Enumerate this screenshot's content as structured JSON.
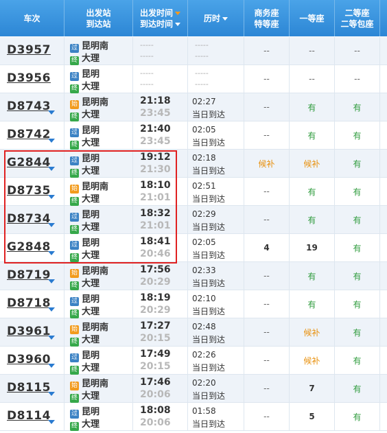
{
  "header": {
    "train_no": "车次",
    "dep_station": "出发站",
    "arr_station": "到达站",
    "dep_time": "出发时间",
    "arr_time": "到达时间",
    "duration": "历时",
    "business": "商务座",
    "premium": "特等座",
    "first": "一等座",
    "second": "二等座",
    "second_box": "二等包座"
  },
  "badges": {
    "guo": "过",
    "shi": "始",
    "zhong": "终"
  },
  "rows": [
    {
      "train": "D3957",
      "arrow": false,
      "from_badge": "过",
      "from": "昆明南",
      "to_badge": "终",
      "to": "大理",
      "dep": "-----",
      "arr": "-----",
      "dur": "-----",
      "dur2": "-----",
      "empty_times": true,
      "business": "--",
      "first": "--",
      "second": "--"
    },
    {
      "train": "D3956",
      "arrow": false,
      "from_badge": "过",
      "from": "昆明",
      "to_badge": "终",
      "to": "大理",
      "dep": "-----",
      "arr": "-----",
      "dur": "-----",
      "dur2": "-----",
      "empty_times": true,
      "business": "--",
      "first": "--",
      "second": "--"
    },
    {
      "train": "D8743",
      "arrow": true,
      "from_badge": "始",
      "from": "昆明南",
      "to_badge": "终",
      "to": "大理",
      "dep": "21:18",
      "arr": "23:45",
      "dur": "02:27",
      "dur2": "当日到达",
      "business": "--",
      "first": "有",
      "second": "有"
    },
    {
      "train": "D8742",
      "arrow": true,
      "from_badge": "过",
      "from": "昆明",
      "to_badge": "终",
      "to": "大理",
      "dep": "21:40",
      "arr": "23:45",
      "dur": "02:05",
      "dur2": "当日到达",
      "business": "--",
      "first": "有",
      "second": "有"
    },
    {
      "train": "G2844",
      "arrow": true,
      "from_badge": "过",
      "from": "昆明",
      "to_badge": "终",
      "to": "大理",
      "dep": "19:12",
      "arr": "21:30",
      "dur": "02:18",
      "dur2": "当日到达",
      "business": "候补",
      "first": "候补",
      "second": "有"
    },
    {
      "train": "D8735",
      "arrow": true,
      "from_badge": "始",
      "from": "昆明南",
      "to_badge": "终",
      "to": "大理",
      "dep": "18:10",
      "arr": "21:01",
      "dur": "02:51",
      "dur2": "当日到达",
      "business": "--",
      "first": "有",
      "second": "有"
    },
    {
      "train": "D8734",
      "arrow": true,
      "from_badge": "过",
      "from": "昆明",
      "to_badge": "终",
      "to": "大理",
      "dep": "18:32",
      "arr": "21:01",
      "dur": "02:29",
      "dur2": "当日到达",
      "business": "--",
      "first": "有",
      "second": "有"
    },
    {
      "train": "G2848",
      "arrow": true,
      "from_badge": "过",
      "from": "昆明",
      "to_badge": "终",
      "to": "大理",
      "dep": "18:41",
      "arr": "20:46",
      "dur": "02:05",
      "dur2": "当日到达",
      "business": "4",
      "first": "19",
      "second": "有"
    },
    {
      "train": "D8719",
      "arrow": true,
      "from_badge": "始",
      "from": "昆明南",
      "to_badge": "终",
      "to": "大理",
      "dep": "17:56",
      "arr": "20:29",
      "dur": "02:33",
      "dur2": "当日到达",
      "business": "--",
      "first": "有",
      "second": "有"
    },
    {
      "train": "D8718",
      "arrow": true,
      "from_badge": "过",
      "from": "昆明",
      "to_badge": "终",
      "to": "大理",
      "dep": "18:19",
      "arr": "20:29",
      "dur": "02:10",
      "dur2": "当日到达",
      "business": "--",
      "first": "有",
      "second": "有"
    },
    {
      "train": "D3961",
      "arrow": true,
      "from_badge": "始",
      "from": "昆明南",
      "to_badge": "终",
      "to": "大理",
      "dep": "17:27",
      "arr": "20:15",
      "dur": "02:48",
      "dur2": "当日到达",
      "business": "--",
      "first": "候补",
      "second": "有"
    },
    {
      "train": "D3960",
      "arrow": true,
      "from_badge": "过",
      "from": "昆明",
      "to_badge": "终",
      "to": "大理",
      "dep": "17:49",
      "arr": "20:15",
      "dur": "02:26",
      "dur2": "当日到达",
      "business": "--",
      "first": "候补",
      "second": "有"
    },
    {
      "train": "D8115",
      "arrow": true,
      "from_badge": "始",
      "from": "昆明南",
      "to_badge": "终",
      "to": "大理",
      "dep": "17:46",
      "arr": "20:06",
      "dur": "02:20",
      "dur2": "当日到达",
      "business": "--",
      "first": "7",
      "second": "有"
    },
    {
      "train": "D8114",
      "arrow": true,
      "from_badge": "过",
      "from": "昆明",
      "to_badge": "终",
      "to": "大理",
      "dep": "18:08",
      "arr": "20:06",
      "dur": "01:58",
      "dur2": "当日到达",
      "business": "--",
      "first": "5",
      "second": "有"
    }
  ]
}
